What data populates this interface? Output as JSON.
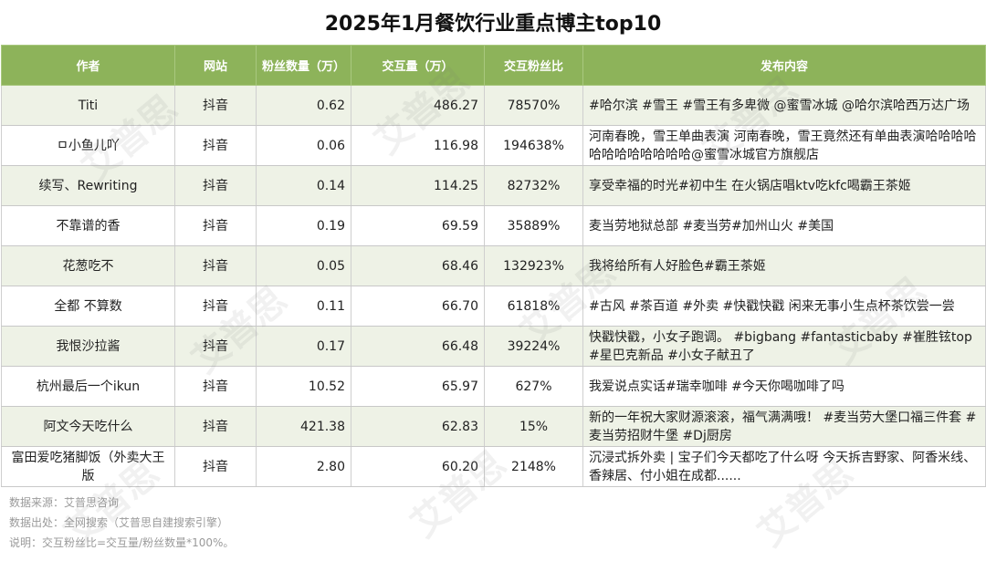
{
  "title": "2025年1月餐饮行业重点博主top10",
  "columns": [
    "作者",
    "网站",
    "粉丝数量（万）",
    "交互量（万）",
    "交互粉丝比",
    "发布内容"
  ],
  "rows": [
    {
      "author": "Titi",
      "site": "抖音",
      "fans": "0.62",
      "interactions": "486.27",
      "ratio": "78570%",
      "content": "#哈尔滨 #雪王 #雪王有多卑微 @蜜雪冰城 @哈尔滨哈西万达广场"
    },
    {
      "author": "ㅁ小鱼儿吖",
      "site": "抖音",
      "fans": "0.06",
      "interactions": "116.98",
      "ratio": "194638%",
      "content": "河南春晚，雪王单曲表演 河南春晚，雪王竟然还有单曲表演哈哈哈哈哈哈哈哈哈哈哈哈@蜜雪冰城官方旗舰店"
    },
    {
      "author": "续写、Rewriting",
      "site": "抖音",
      "fans": "0.14",
      "interactions": "114.25",
      "ratio": "82732%",
      "content": "享受幸福的时光#初中生 在火锅店唱ktv吃kfc喝霸王茶姬"
    },
    {
      "author": "不靠谱的香",
      "site": "抖音",
      "fans": "0.19",
      "interactions": "69.59",
      "ratio": "35889%",
      "content": "麦当劳地狱总部 #麦当劳#加州山火 #美国"
    },
    {
      "author": "花葱吃不",
      "site": "抖音",
      "fans": "0.05",
      "interactions": "68.46",
      "ratio": "132923%",
      "content": "我将给所有人好脸色#霸王茶姬"
    },
    {
      "author": "全都 不算数",
      "site": "抖音",
      "fans": "0.11",
      "interactions": "66.70",
      "ratio": "61818%",
      "content": "#古风 #茶百道 #外卖 #快戳快戳 闲来无事小生点杯茶饮尝一尝"
    },
    {
      "author": "我恨沙拉酱",
      "site": "抖音",
      "fans": "0.17",
      "interactions": "66.48",
      "ratio": "39224%",
      "content": "快戳快戳，小女子跑调。 #bigbang #fantasticbaby #崔胜铉top #星巴克新品 #小女子献丑了"
    },
    {
      "author": "杭州最后一个ikun",
      "site": "抖音",
      "fans": "10.52",
      "interactions": "65.97",
      "ratio": "627%",
      "content": "我爱说点实话#瑞幸咖啡 #今天你喝咖啡了吗"
    },
    {
      "author": "阿文今天吃什么",
      "site": "抖音",
      "fans": "421.38",
      "interactions": "62.83",
      "ratio": "15%",
      "content": "新的一年祝大家财源滚滚，福气满满哦！ #麦当劳大堡口福三件套 #麦当劳招财牛堡 #Dj厨房"
    },
    {
      "author": "富田爱吃猪脚饭（外卖大王版",
      "site": "抖音",
      "fans": "2.80",
      "interactions": "60.20",
      "ratio": "2148%",
      "content": "沉浸式拆外卖 | 宝子们今天都吃了什么呀 今天拆吉野家、阿香米线、香辣居、付小姐在成都......"
    }
  ],
  "footer": {
    "source": "数据来源：艾普思咨询",
    "origin": "数据出处：全网搜索（艾普思自建搜索引擎）",
    "note": "说明：交互粉丝比=交互量/粉丝数量*100%。"
  },
  "watermark": "艾普思",
  "colors": {
    "header_bg": "#8db35a",
    "row_alt": "#eef2e6"
  }
}
